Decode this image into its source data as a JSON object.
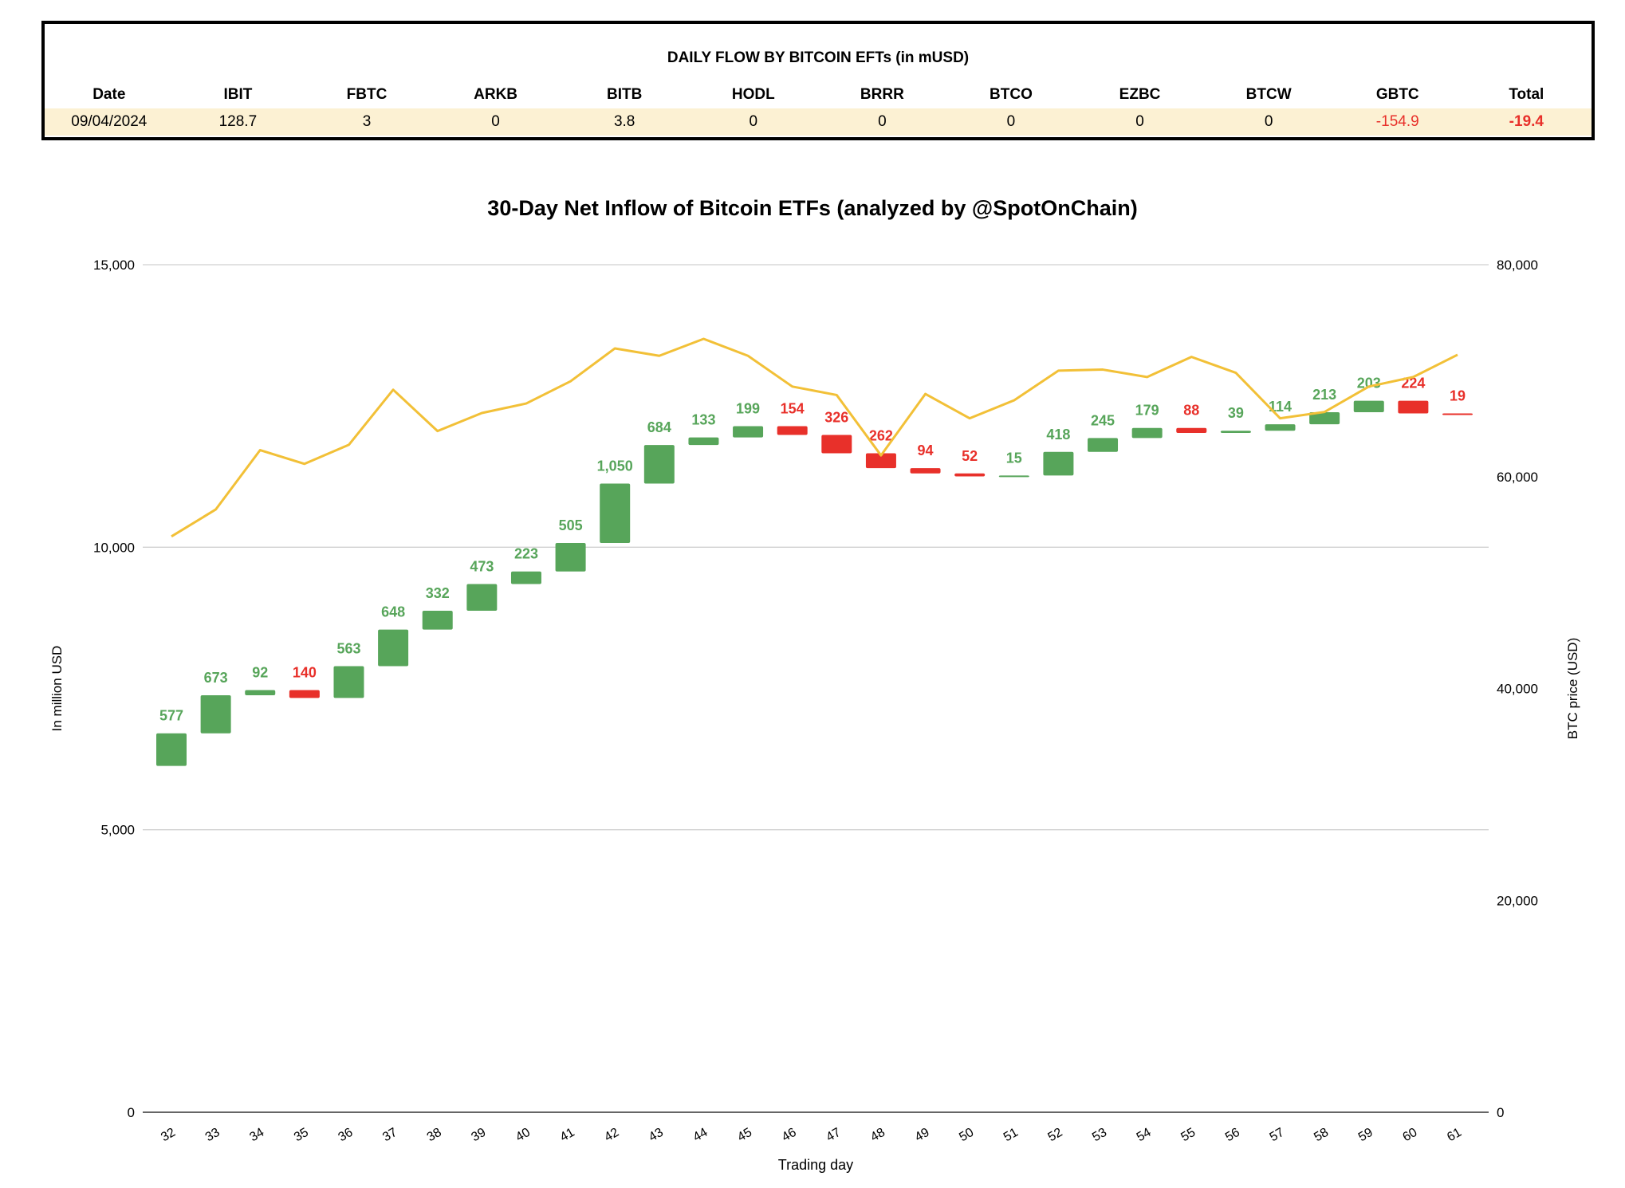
{
  "table": {
    "title": "DAILY FLOW BY BITCOIN EFTs (in mUSD)",
    "headers": [
      "Date",
      "IBIT",
      "FBTC",
      "ARKB",
      "BITB",
      "HODL",
      "BRRR",
      "BTCO",
      "EZBC",
      "BTCW",
      "GBTC",
      "Total"
    ],
    "row": [
      "09/04/2024",
      "128.7",
      "3",
      "0",
      "3.8",
      "0",
      "0",
      "0",
      "0",
      "0",
      "-154.9",
      "-19.4"
    ]
  },
  "colors": {
    "positive": "#57a55a",
    "negative": "#e8302a",
    "price_line": "#f2c037",
    "grid": "#d0d0d0"
  },
  "chart_data": {
    "type": "waterfall+line",
    "title": "30-Day Net Inflow of Bitcoin ETFs (analyzed by @SpotOnChain)",
    "xlabel": "Trading day",
    "ylabel": "In million USD",
    "y2label": "BTC price (USD)",
    "ylim": [
      0,
      15000
    ],
    "y2lim": [
      0,
      80000
    ],
    "yticks": [
      "0",
      "5,000",
      "10,000",
      "15,000"
    ],
    "y2ticks": [
      "0",
      "20,000",
      "40,000",
      "60,000",
      "80,000"
    ],
    "grid": true,
    "start_cumulative": 6130,
    "categories": [
      "32",
      "33",
      "34",
      "35",
      "36",
      "37",
      "38",
      "39",
      "40",
      "41",
      "42",
      "43",
      "44",
      "45",
      "46",
      "47",
      "48",
      "49",
      "50",
      "51",
      "52",
      "53",
      "54",
      "55",
      "56",
      "57",
      "58",
      "59",
      "60",
      "61"
    ],
    "net_flow": [
      577,
      673,
      92,
      -140,
      563,
      648,
      332,
      473,
      223,
      505,
      1050,
      684,
      133,
      199,
      -154,
      -326,
      -262,
      -94,
      -52,
      15,
      418,
      245,
      179,
      -88,
      39,
      114,
      213,
      203,
      -224,
      -19
    ],
    "flow_labels": [
      "577",
      "673",
      "92",
      "140",
      "563",
      "648",
      "332",
      "473",
      "223",
      "505",
      "1,050",
      "684",
      "133",
      "199",
      "154",
      "326",
      "262",
      "94",
      "52",
      "15",
      "418",
      "245",
      "179",
      "88",
      "39",
      "114",
      "213",
      "203",
      "224",
      "19"
    ],
    "btc_price": [
      54350,
      56900,
      62500,
      61200,
      63000,
      68200,
      64300,
      66000,
      66900,
      69000,
      72100,
      71400,
      73000,
      71400,
      68500,
      67700,
      62000,
      67800,
      65500,
      67200,
      70000,
      70100,
      69400,
      71300,
      69800,
      65500,
      66100,
      68500,
      69400,
      71500
    ]
  }
}
